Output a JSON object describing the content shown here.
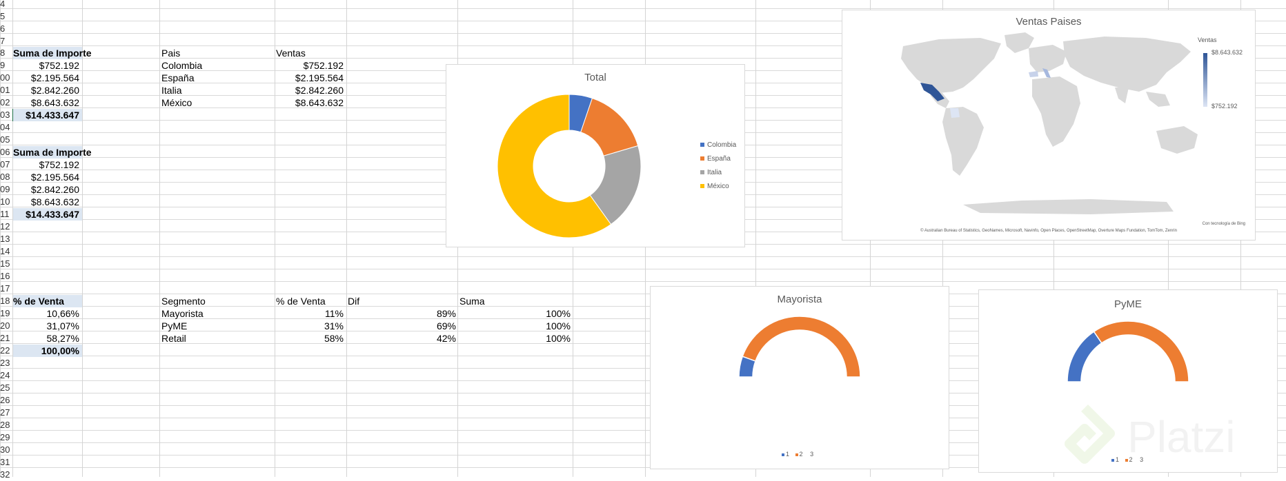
{
  "row_numbers": [
    "4",
    "5",
    "6",
    "7",
    "8",
    "9",
    "00",
    "01",
    "02",
    "03",
    "04",
    "05",
    "06",
    "07",
    "08",
    "09",
    "10",
    "11",
    "12",
    "13",
    "14",
    "15",
    "16",
    "17",
    "18",
    "19",
    "20",
    "21",
    "22",
    "23",
    "24",
    "25",
    "26",
    "27",
    "28",
    "29",
    "30",
    "31",
    "32"
  ],
  "pivot1": {
    "header": "Suma de Importe",
    "values": [
      "$752.192",
      "$2.195.564",
      "$2.842.260",
      "$8.643.632"
    ],
    "total": "$14.433.647"
  },
  "country_table": {
    "headers": [
      "Pais",
      "Ventas"
    ],
    "rows": [
      [
        "Colombia",
        "$752.192"
      ],
      [
        "España",
        "$2.195.564"
      ],
      [
        "Italia",
        "$2.842.260"
      ],
      [
        "México",
        "$8.643.632"
      ]
    ]
  },
  "pivot2": {
    "header": "Suma de Importe",
    "values": [
      "$752.192",
      "$2.195.564",
      "$2.842.260",
      "$8.643.632"
    ],
    "total": "$14.433.647"
  },
  "pivot3": {
    "header": "% de Venta",
    "values": [
      "10,66%",
      "31,07%",
      "58,27%"
    ],
    "total": "100,00%"
  },
  "segment_table": {
    "headers": [
      "Segmento",
      "% de Venta",
      "Dif",
      "Suma"
    ],
    "rows": [
      [
        "Mayorista",
        "11%",
        "89%",
        "100%"
      ],
      [
        "PyME",
        "31%",
        "69%",
        "100%"
      ],
      [
        "Retail",
        "58%",
        "42%",
        "100%"
      ]
    ]
  },
  "colors": {
    "blue": "#4472c4",
    "orange": "#ed7d31",
    "gray": "#a5a5a5",
    "yellow": "#ffc000"
  },
  "chart_data": [
    {
      "type": "pie",
      "title": "Total",
      "categories": [
        "Colombia",
        "España",
        "Italia",
        "México"
      ],
      "values": [
        752192,
        2195564,
        2842260,
        8643632
      ],
      "legend": "right"
    },
    {
      "type": "pie",
      "title": "Mayorista",
      "categories": [
        "1",
        "2",
        "3"
      ],
      "values": [
        0.11,
        0.89,
        1.0
      ],
      "legend": "bottom"
    },
    {
      "type": "pie",
      "title": "PyME",
      "categories": [
        "1",
        "2",
        "3"
      ],
      "values": [
        0.31,
        0.69,
        1.0
      ],
      "legend": "bottom"
    }
  ],
  "map_chart": {
    "title": "Ventas Paises",
    "legend_title": "Ventas",
    "legend_max": "$8.643.632",
    "legend_min": "$752.192",
    "credit1": "Con tecnología de Bing",
    "credit2": "© Australian Bureau of Statistics, GeoNames, Microsoft, Navinfo, Open Places, OpenStreetMap, Overture Maps Fundation, TomTom, Zenrin"
  },
  "watermark": "Platzi"
}
